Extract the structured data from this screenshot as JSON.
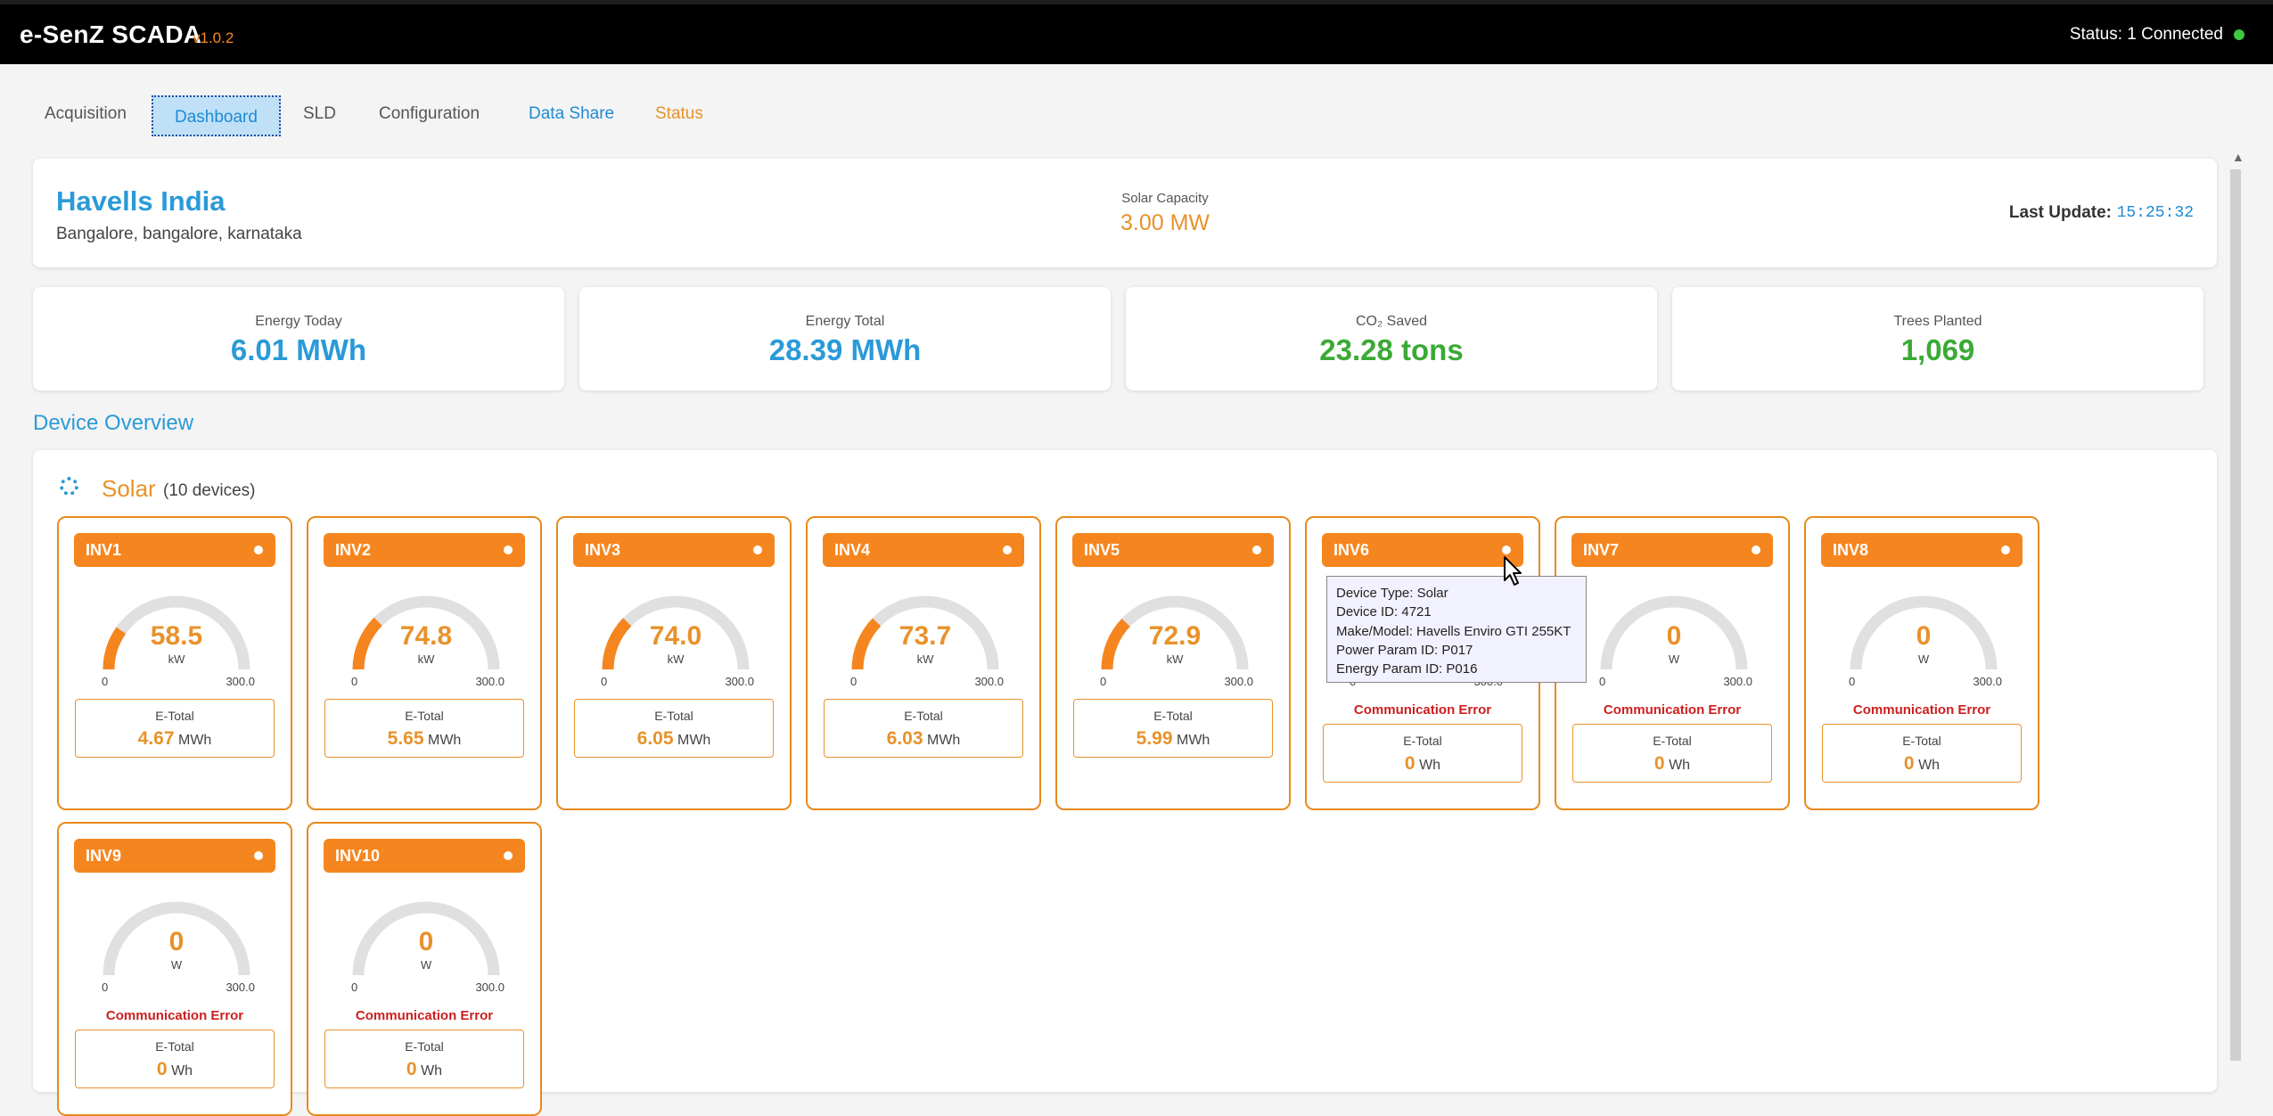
{
  "app": {
    "title": "e-SenZ SCADA",
    "version": "v1.0.2",
    "status": "Status: 1 Connected"
  },
  "tabs": [
    {
      "label": "Acquisition"
    },
    {
      "label": "Dashboard"
    },
    {
      "label": "SLD"
    },
    {
      "label": "Configuration"
    },
    {
      "label": "Data Share"
    },
    {
      "label": "Status"
    }
  ],
  "plant": {
    "name": "Havells India",
    "location": "Bangalore, bangalore, karnataka",
    "capacity_label": "Solar Capacity",
    "capacity_value": "3.00 MW",
    "last_update_label": "Last Update:",
    "last_update_value": "15:25:32"
  },
  "stats": [
    {
      "label": "Energy Today",
      "value": "6.01 MWh",
      "color": "#2a9ad8"
    },
    {
      "label": "Energy Total",
      "value": "28.39 MWh",
      "color": "#2a9ad8"
    },
    {
      "label": "CO₂ Saved",
      "value": "23.28 tons",
      "color": "#3aaa35"
    },
    {
      "label": "Trees Planted",
      "value": "1,069",
      "color": "#3aaa35"
    }
  ],
  "device_overview": {
    "title": "Device Overview",
    "group_name": "Solar",
    "group_count": "(10 devices)",
    "group_icon": "solar-ring-icon",
    "gauge_min": "0",
    "gauge_max": "300.0",
    "gauge_max_value": 300,
    "etotal_label": "E-Total",
    "comm_error_text": "Communication Error",
    "inverters": [
      {
        "name": "INV1",
        "value": "58.5",
        "level": 58.5,
        "unit": "kW",
        "etotal": "4.67",
        "etotal_unit": "MWh",
        "error": false
      },
      {
        "name": "INV2",
        "value": "74.8",
        "level": 74.8,
        "unit": "kW",
        "etotal": "5.65",
        "etotal_unit": "MWh",
        "error": false
      },
      {
        "name": "INV3",
        "value": "74.0",
        "level": 74.0,
        "unit": "kW",
        "etotal": "6.05",
        "etotal_unit": "MWh",
        "error": false
      },
      {
        "name": "INV4",
        "value": "73.7",
        "level": 73.7,
        "unit": "kW",
        "etotal": "6.03",
        "etotal_unit": "MWh",
        "error": false
      },
      {
        "name": "INV5",
        "value": "72.9",
        "level": 72.9,
        "unit": "kW",
        "etotal": "5.99",
        "etotal_unit": "MWh",
        "error": false
      },
      {
        "name": "INV6",
        "value": "0",
        "level": 0,
        "unit": "W",
        "etotal": "0",
        "etotal_unit": "Wh",
        "error": true
      },
      {
        "name": "INV7",
        "value": "0",
        "level": 0,
        "unit": "W",
        "etotal": "0",
        "etotal_unit": "Wh",
        "error": true
      },
      {
        "name": "INV8",
        "value": "0",
        "level": 0,
        "unit": "W",
        "etotal": "0",
        "etotal_unit": "Wh",
        "error": true
      },
      {
        "name": "INV9",
        "value": "0",
        "level": 0,
        "unit": "W",
        "etotal": "0",
        "etotal_unit": "Wh",
        "error": true
      },
      {
        "name": "INV10",
        "value": "0",
        "level": 0,
        "unit": "W",
        "etotal": "0",
        "etotal_unit": "Wh",
        "error": true
      }
    ]
  },
  "tooltip": {
    "lines": [
      "Device Type: Solar",
      "Device ID: 4721",
      "Make/Model: Havells Enviro GTI 255KT",
      "Power Param ID: P017",
      "Energy Param ID: P016"
    ]
  },
  "colors": {
    "accent": "#f5861f",
    "link": "#2a9ad8",
    "error": "#cc1f1f",
    "connected": "#3ec93e"
  }
}
